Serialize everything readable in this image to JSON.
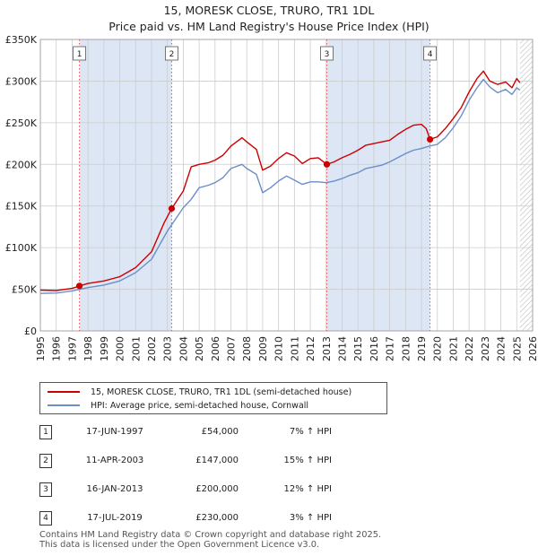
{
  "title": "15, MORESK CLOSE, TRURO, TR1 1DL",
  "subtitle": "Price paid vs. HM Land Registry's House Price Index (HPI)",
  "colors": {
    "property": "#cc0000",
    "hpi": "#6b8fc7",
    "shade": "#dde6f5",
    "grid": "#cccccc"
  },
  "chart_data": {
    "type": "line",
    "title": "Price paid vs. HM Land Registry's House Price Index (HPI)",
    "xlabel": "",
    "ylabel": "",
    "xlim": [
      1995,
      2026
    ],
    "ylim": [
      0,
      350000
    ],
    "xticks": [
      "1995",
      "1996",
      "1997",
      "1998",
      "1999",
      "2000",
      "2001",
      "2002",
      "2003",
      "2004",
      "2005",
      "2006",
      "2007",
      "2008",
      "2009",
      "2010",
      "2011",
      "2012",
      "2013",
      "2014",
      "2015",
      "2016",
      "2017",
      "2018",
      "2019",
      "2020",
      "2021",
      "2022",
      "2023",
      "2024",
      "2025",
      "2026"
    ],
    "yticks": [
      {
        "value": 0,
        "label": "£0"
      },
      {
        "value": 50000,
        "label": "£50K"
      },
      {
        "value": 100000,
        "label": "£100K"
      },
      {
        "value": 150000,
        "label": "£150K"
      },
      {
        "value": 200000,
        "label": "£200K"
      },
      {
        "value": 250000,
        "label": "£250K"
      },
      {
        "value": 300000,
        "label": "£300K"
      },
      {
        "value": 350000,
        "label": "£350K"
      }
    ],
    "series": [
      {
        "name": "15, MORESK CLOSE, TRURO, TR1 1DL (semi-detached house)",
        "points": [
          [
            1995,
            49000
          ],
          [
            1996,
            48500
          ],
          [
            1997,
            51000
          ],
          [
            1997.46,
            54000
          ],
          [
            1998,
            57000
          ],
          [
            1999,
            60000
          ],
          [
            2000,
            65000
          ],
          [
            2001,
            76000
          ],
          [
            2002,
            95000
          ],
          [
            2002.8,
            130000
          ],
          [
            2003.27,
            147000
          ],
          [
            2004,
            168000
          ],
          [
            2004.5,
            197000
          ],
          [
            2005,
            200000
          ],
          [
            2005.6,
            202000
          ],
          [
            2006,
            205000
          ],
          [
            2006.5,
            211000
          ],
          [
            2007,
            222000
          ],
          [
            2007.7,
            232000
          ],
          [
            2008,
            227000
          ],
          [
            2008.6,
            218000
          ],
          [
            2009,
            193000
          ],
          [
            2009.5,
            198000
          ],
          [
            2010,
            207000
          ],
          [
            2010.5,
            214000
          ],
          [
            2011,
            210000
          ],
          [
            2011.5,
            201000
          ],
          [
            2012,
            207000
          ],
          [
            2012.5,
            208000
          ],
          [
            2013.04,
            200000
          ],
          [
            2013.5,
            203000
          ],
          [
            2014,
            208000
          ],
          [
            2014.5,
            212000
          ],
          [
            2015,
            217000
          ],
          [
            2015.5,
            223000
          ],
          [
            2016,
            225000
          ],
          [
            2016.5,
            227000
          ],
          [
            2017,
            229000
          ],
          [
            2017.5,
            236000
          ],
          [
            2018,
            242000
          ],
          [
            2018.5,
            247000
          ],
          [
            2019,
            248000
          ],
          [
            2019.3,
            243000
          ],
          [
            2019.54,
            230000
          ],
          [
            2020,
            233000
          ],
          [
            2020.5,
            243000
          ],
          [
            2021,
            255000
          ],
          [
            2021.5,
            268000
          ],
          [
            2022,
            287000
          ],
          [
            2022.5,
            303000
          ],
          [
            2022.9,
            312000
          ],
          [
            2023.3,
            300000
          ],
          [
            2023.8,
            296000
          ],
          [
            2024.3,
            299000
          ],
          [
            2024.7,
            292000
          ],
          [
            2025,
            303000
          ],
          [
            2025.2,
            298000
          ]
        ]
      },
      {
        "name": "HPI: Average price, semi-detached house, Cornwall",
        "points": [
          [
            1995,
            45000
          ],
          [
            1996,
            45500
          ],
          [
            1997,
            48000
          ],
          [
            1998,
            52000
          ],
          [
            1999,
            55000
          ],
          [
            2000,
            60000
          ],
          [
            2001,
            70000
          ],
          [
            2002,
            86000
          ],
          [
            2003,
            120000
          ],
          [
            2004,
            148000
          ],
          [
            2004.5,
            158000
          ],
          [
            2005,
            172000
          ],
          [
            2005.6,
            175000
          ],
          [
            2006,
            178000
          ],
          [
            2006.5,
            184000
          ],
          [
            2007,
            195000
          ],
          [
            2007.7,
            200000
          ],
          [
            2008,
            195000
          ],
          [
            2008.6,
            188000
          ],
          [
            2009,
            166000
          ],
          [
            2009.5,
            172000
          ],
          [
            2010,
            180000
          ],
          [
            2010.5,
            186000
          ],
          [
            2011,
            181000
          ],
          [
            2011.5,
            176000
          ],
          [
            2012,
            179000
          ],
          [
            2012.5,
            179000
          ],
          [
            2013,
            178000
          ],
          [
            2013.5,
            180000
          ],
          [
            2014,
            183000
          ],
          [
            2014.5,
            187000
          ],
          [
            2015,
            190000
          ],
          [
            2015.5,
            195000
          ],
          [
            2016,
            197000
          ],
          [
            2016.5,
            199000
          ],
          [
            2017,
            203000
          ],
          [
            2017.5,
            208000
          ],
          [
            2018,
            213000
          ],
          [
            2018.5,
            217000
          ],
          [
            2019,
            219000
          ],
          [
            2019.5,
            222000
          ],
          [
            2020,
            224000
          ],
          [
            2020.5,
            232000
          ],
          [
            2021,
            244000
          ],
          [
            2021.5,
            258000
          ],
          [
            2022,
            277000
          ],
          [
            2022.5,
            292000
          ],
          [
            2022.9,
            302000
          ],
          [
            2023.3,
            293000
          ],
          [
            2023.8,
            286000
          ],
          [
            2024.3,
            290000
          ],
          [
            2024.7,
            284000
          ],
          [
            2025,
            292000
          ],
          [
            2025.2,
            289000
          ]
        ]
      }
    ],
    "sales": [
      {
        "n": "1",
        "x": 1997.46,
        "price": 54000
      },
      {
        "n": "2",
        "x": 2003.27,
        "price": 147000
      },
      {
        "n": "3",
        "x": 2013.04,
        "price": 200000
      },
      {
        "n": "4",
        "x": 2019.54,
        "price": 230000
      }
    ],
    "shaded_spans": [
      [
        1997.46,
        2003.27
      ],
      [
        2013.04,
        2019.54
      ]
    ],
    "hatched_from": 2025.2
  },
  "legend": {
    "property_label": "15, MORESK CLOSE, TRURO, TR1 1DL (semi-detached house)",
    "hpi_label": "HPI: Average price, semi-detached house, Cornwall"
  },
  "sales_table": [
    {
      "n": "1",
      "date": "17-JUN-1997",
      "price": "£54,000",
      "hpi": "7% ↑ HPI"
    },
    {
      "n": "2",
      "date": "11-APR-2003",
      "price": "£147,000",
      "hpi": "15% ↑ HPI"
    },
    {
      "n": "3",
      "date": "16-JAN-2013",
      "price": "£200,000",
      "hpi": "12% ↑ HPI"
    },
    {
      "n": "4",
      "date": "17-JUL-2019",
      "price": "£230,000",
      "hpi": "3% ↑ HPI"
    }
  ],
  "footer": {
    "line1": "Contains HM Land Registry data © Crown copyright and database right 2025.",
    "line2": "This data is licensed under the Open Government Licence v3.0."
  }
}
